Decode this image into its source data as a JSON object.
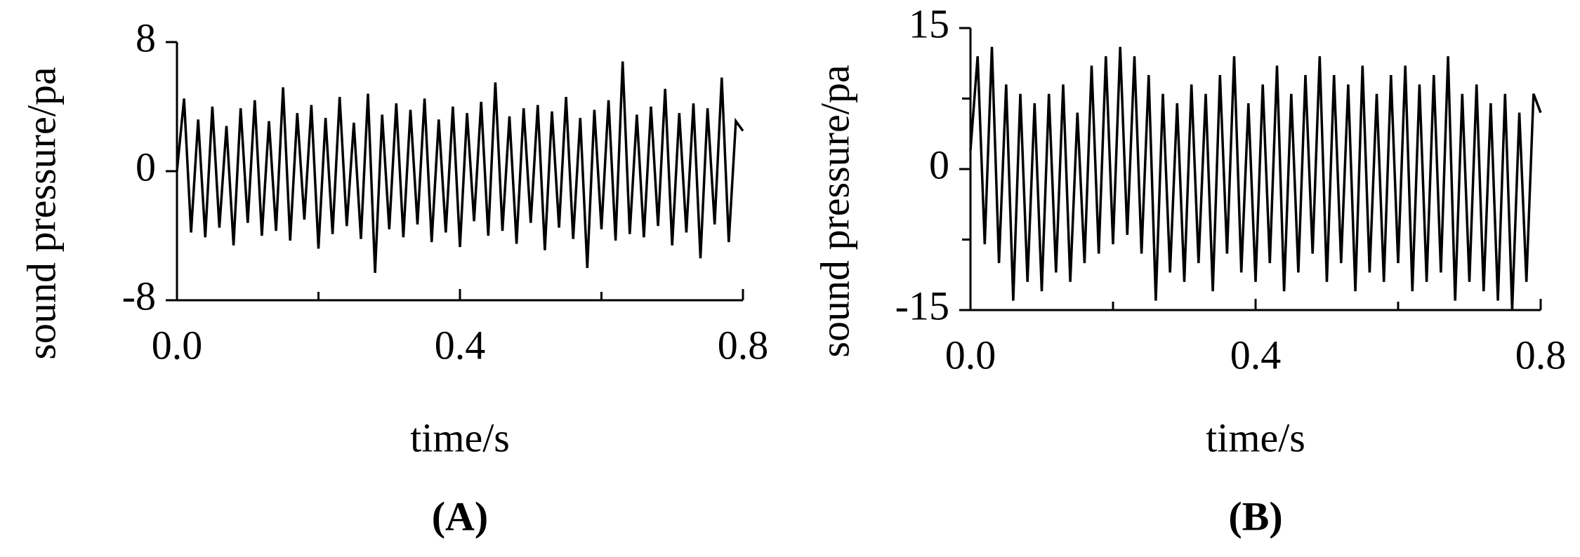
{
  "chart_data": [
    {
      "type": "line",
      "panel_label": "(A)",
      "xlabel": "time/s",
      "ylabel": "sound pressure/pa",
      "xlim": [
        0,
        0.8
      ],
      "ylim": [
        -8,
        8
      ],
      "xticks": [
        {
          "value": 0,
          "label": "0.0"
        },
        0.4,
        {
          "value": 0.8,
          "label": "0.8"
        }
      ],
      "xminorticks": [
        0.2,
        0.6
      ],
      "yticks": [
        -8,
        0,
        8
      ],
      "yminorticks": [],
      "x": [
        0,
        0.01,
        0.02,
        0.03,
        0.04,
        0.05,
        0.06,
        0.07,
        0.08,
        0.09,
        0.1,
        0.11,
        0.12,
        0.13,
        0.14,
        0.15,
        0.16,
        0.17,
        0.18,
        0.19,
        0.2,
        0.21,
        0.22,
        0.23,
        0.24,
        0.25,
        0.26,
        0.27,
        0.28,
        0.29,
        0.3,
        0.31,
        0.32,
        0.33,
        0.34,
        0.35,
        0.36,
        0.37,
        0.38,
        0.39,
        0.4,
        0.41,
        0.42,
        0.43,
        0.44,
        0.45,
        0.46,
        0.47,
        0.48,
        0.49,
        0.5,
        0.51,
        0.52,
        0.53,
        0.54,
        0.55,
        0.56,
        0.57,
        0.58,
        0.59,
        0.6,
        0.61,
        0.62,
        0.63,
        0.64,
        0.65,
        0.66,
        0.67,
        0.68,
        0.69,
        0.7,
        0.71,
        0.72,
        0.73,
        0.74,
        0.75,
        0.76,
        0.77,
        0.78,
        0.79,
        0.8
      ],
      "series": [
        {
          "color": "#000000",
          "values": [
            0,
            4.5,
            -3.8,
            3.2,
            -4.1,
            4.0,
            -3.5,
            2.8,
            -4.6,
            3.9,
            -3.2,
            4.4,
            -4.0,
            3.1,
            -3.7,
            5.2,
            -4.3,
            3.6,
            -3.0,
            4.1,
            -4.8,
            3.3,
            -3.9,
            4.6,
            -3.4,
            3.0,
            -4.2,
            4.8,
            -6.3,
            3.5,
            -3.6,
            4.2,
            -4.1,
            3.8,
            -3.3,
            4.5,
            -4.4,
            3.2,
            -3.8,
            4.0,
            -4.7,
            3.6,
            -3.1,
            4.3,
            -4.0,
            5.5,
            -3.7,
            3.4,
            -4.5,
            3.9,
            -3.2,
            4.1,
            -4.9,
            3.7,
            -3.5,
            4.6,
            -4.2,
            3.3,
            -6.0,
            3.8,
            -3.6,
            4.4,
            -4.3,
            6.8,
            -3.9,
            3.5,
            -4.1,
            4.0,
            -3.4,
            5.1,
            -4.6,
            3.6,
            -3.8,
            4.2,
            -5.4,
            3.9,
            -3.3,
            5.8,
            -4.4,
            3.1,
            2.5
          ]
        }
      ]
    },
    {
      "type": "line",
      "panel_label": "(B)",
      "xlabel": "time/s",
      "ylabel": "sound pressure/pa",
      "xlim": [
        0,
        0.8
      ],
      "ylim": [
        -15,
        15
      ],
      "xticks": [
        {
          "value": 0,
          "label": "0.0"
        },
        0.4,
        {
          "value": 0.8,
          "label": "0.8"
        }
      ],
      "xminorticks": [
        0.2,
        0.6
      ],
      "yticks": [
        -15,
        0,
        15
      ],
      "yminorticks": [
        -7.5,
        7.5
      ],
      "x": [
        0,
        0.01,
        0.02,
        0.03,
        0.04,
        0.05,
        0.06,
        0.07,
        0.08,
        0.09,
        0.1,
        0.11,
        0.12,
        0.13,
        0.14,
        0.15,
        0.16,
        0.17,
        0.18,
        0.19,
        0.2,
        0.21,
        0.22,
        0.23,
        0.24,
        0.25,
        0.26,
        0.27,
        0.28,
        0.29,
        0.3,
        0.31,
        0.32,
        0.33,
        0.34,
        0.35,
        0.36,
        0.37,
        0.38,
        0.39,
        0.4,
        0.41,
        0.42,
        0.43,
        0.44,
        0.45,
        0.46,
        0.47,
        0.48,
        0.49,
        0.5,
        0.51,
        0.52,
        0.53,
        0.54,
        0.55,
        0.56,
        0.57,
        0.58,
        0.59,
        0.6,
        0.61,
        0.62,
        0.63,
        0.64,
        0.65,
        0.66,
        0.67,
        0.68,
        0.69,
        0.7,
        0.71,
        0.72,
        0.73,
        0.74,
        0.75,
        0.76,
        0.77,
        0.78,
        0.79,
        0.8
      ],
      "series": [
        {
          "color": "#000000",
          "values": [
            2,
            12,
            -8,
            13,
            -10,
            9,
            -14,
            8,
            -12,
            7,
            -13,
            8,
            -11,
            9,
            -12,
            6,
            -10,
            11,
            -9,
            12,
            -8,
            13,
            -7,
            12,
            -9,
            10,
            -14,
            8,
            -11,
            7,
            -12,
            9,
            -10,
            8,
            -13,
            10,
            -9,
            12,
            -11,
            7,
            -12,
            9,
            -10,
            11,
            -13,
            8,
            -11,
            10,
            -9,
            12,
            -12,
            10,
            -10,
            9,
            -13,
            11,
            -11,
            8,
            -12,
            10,
            -10,
            11,
            -13,
            9,
            -12,
            10,
            -11,
            12,
            -14,
            8,
            -12,
            9,
            -13,
            7,
            -14,
            8,
            -15,
            6,
            -12,
            8,
            6
          ]
        }
      ]
    }
  ]
}
